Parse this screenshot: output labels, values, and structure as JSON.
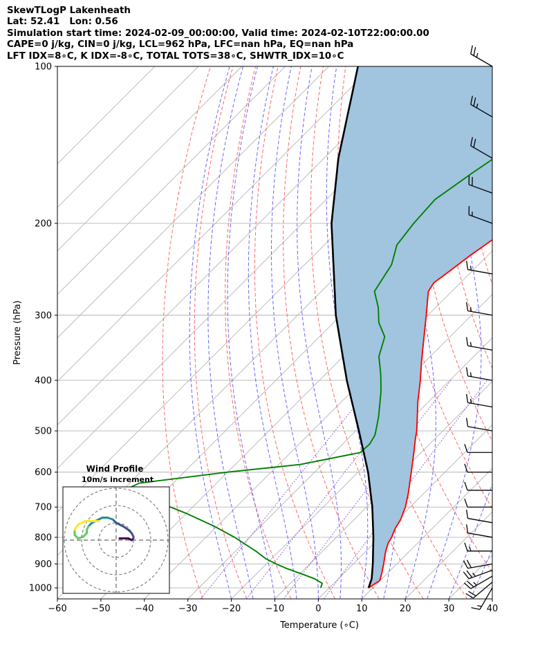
{
  "header": {
    "line1": "SkewTLogP Lakenheath",
    "line2": "Lat: 52.41   Lon: 0.56",
    "line3": "Simulation start time: 2024-02-09_00:00:00, Valid time: 2024-02-10T22:00:00.00",
    "line4": "CAPE=0 j/kg, CIN=0 j/kg, LCL=962 hPa, LFC=nan hPa, EQ=nan hPa",
    "line5": "LFT IDX=8∘C, K IDX=-8∘C, TOTAL TOTS=38∘C, SHWTR_IDX=10∘C"
  },
  "chart_data": [
    {
      "type": "line",
      "chart_kind": "skew-t log-p",
      "xlabel": "Temperature (∘C)",
      "ylabel": "Pressure (hPa)",
      "xlim": [
        -60,
        40
      ],
      "ylim": [
        1050,
        100
      ],
      "y_scale": "log",
      "grid": true,
      "x_ticks": [
        "−60",
        "−50",
        "−40",
        "−30",
        "−20",
        "−10",
        "0",
        "10",
        "20",
        "30",
        "40"
      ],
      "y_ticks": [
        "100",
        "200",
        "300",
        "400",
        "500",
        "600",
        "700",
        "800",
        "900",
        "1000"
      ],
      "colors": {
        "temperature": "#ff0000",
        "dewpoint": "#008000",
        "parcel": "#000000",
        "cape_fill": "#a1c4df",
        "dry_adiabat": "#ff6666",
        "moist_adiabat": "#6666ff",
        "mixing_ratio": "#9966cc",
        "isotherm": "#b4b4b4"
      },
      "series": [],
      "temperature": {
        "pressure": [
          1000,
          970,
          960,
          940,
          920,
          900,
          880,
          850,
          820,
          800,
          770,
          740,
          700,
          660,
          620,
          580,
          550,
          520,
          500,
          470,
          440,
          400,
          370,
          350,
          320,
          300,
          280,
          270,
          260,
          250,
          230,
          200,
          180,
          160,
          150,
          140,
          130,
          120,
          110,
          100
        ],
        "temperature": [
          9,
          9.9,
          9.6,
          8.8,
          7.9,
          7.0,
          6.0,
          4.5,
          3.2,
          2.7,
          1.5,
          0.7,
          -1.1,
          -3.5,
          -6.3,
          -9.3,
          -11.7,
          -14.3,
          -16.0,
          -19.1,
          -22.4,
          -26.8,
          -30.6,
          -33.2,
          -37.4,
          -40.4,
          -43.7,
          -45.4,
          -46.1,
          -45.4,
          -44.0,
          -41.0,
          -40.1,
          -39.3,
          -39.3,
          -39.9,
          -40.6,
          -40.3,
          -40.8,
          -41.1
        ]
      },
      "dewpoint": {
        "pressure": [
          1000,
          980,
          960,
          940,
          920,
          900,
          880,
          850,
          800,
          760,
          720,
          680,
          650,
          630,
          600,
          580,
          550,
          530,
          510,
          500,
          470,
          440,
          420,
          390,
          360,
          330,
          310,
          290,
          270,
          240,
          220,
          200,
          180,
          160,
          140,
          120,
          100
        ],
        "dewpoint": [
          -2,
          -2.7,
          -5.6,
          -9.6,
          -13.9,
          -17.7,
          -21.2,
          -25.4,
          -33.4,
          -41.0,
          -50.0,
          -60.4,
          -69.6,
          -67.8,
          -50.0,
          -35.0,
          -24.0,
          -23.8,
          -24.6,
          -25.4,
          -28.0,
          -31.1,
          -33.3,
          -37.2,
          -41.8,
          -45.0,
          -49.6,
          -53.2,
          -57.8,
          -60.0,
          -63.3,
          -64.4,
          -65.0,
          -62.5,
          -59.2,
          -56.0,
          -53.3
        ]
      },
      "parcel": {
        "pressure": [
          1000,
          962,
          900,
          800,
          700,
          600,
          500,
          400,
          300,
          200,
          150,
          100
        ],
        "temperature": [
          9,
          7.7,
          4.5,
          -1.5,
          -8.7,
          -17.7,
          -29.3,
          -43.7,
          -61.2,
          -83.3,
          -96.7,
          -113.3
        ]
      },
      "wind_barbs": {
        "pressure": [
          1000,
          975,
          950,
          925,
          900,
          850,
          800,
          750,
          700,
          650,
          600,
          550,
          500,
          450,
          400,
          350,
          300,
          250,
          200,
          175,
          150,
          125,
          100
        ],
        "speed_kt": [
          15,
          20,
          25,
          25,
          20,
          15,
          10,
          10,
          10,
          10,
          10,
          10,
          10,
          15,
          15,
          15,
          15,
          15,
          15,
          20,
          20,
          25,
          25
        ],
        "direction_deg": [
          210,
          230,
          240,
          250,
          260,
          270,
          280,
          280,
          270,
          270,
          270,
          270,
          280,
          280,
          280,
          280,
          280,
          280,
          290,
          290,
          300,
          300,
          300
        ]
      }
    },
    {
      "type": "line",
      "chart_kind": "hodograph",
      "title": "Wind Profile",
      "subtitle": "10m/s increment",
      "ring_spacing_ms": 10,
      "u_ms": [
        2,
        5,
        7,
        9,
        10,
        10,
        9,
        7,
        4,
        0,
        -2,
        -5,
        -8,
        -10,
        -12,
        -14,
        -16,
        -17,
        -17,
        -19,
        -22,
        -24,
        -24,
        -22,
        -18,
        -14,
        -10
      ],
      "v_ms": [
        1,
        1,
        1,
        0,
        1,
        2,
        4,
        6,
        8,
        10,
        12,
        13,
        13,
        12,
        11,
        10,
        8,
        6,
        4,
        2,
        1,
        3,
        6,
        9,
        11,
        11,
        11
      ],
      "colormap": [
        "#440154",
        "#3b528b",
        "#21918c",
        "#5ec962",
        "#fde725"
      ]
    }
  ]
}
